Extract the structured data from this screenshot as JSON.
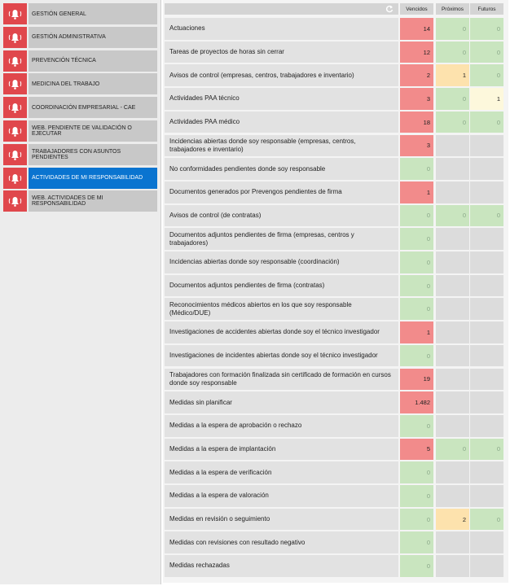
{
  "sidebar": {
    "items": [
      "GESTIÓN GENERAL",
      "GESTIÓN ADMINISTRATIVA",
      "PREVENCIÓN TÉCNICA",
      "MEDICINA DEL TRABAJO",
      "COORDINACIÓN EMPRESARIAL - CAE",
      "WEB. PENDIENTE DE VALIDACIÓN O EJECUTAR",
      "TRABAJADORES CON ASUNTOS PENDIENTES",
      "ACTIVIDADES DE MI RESPONSABILIDAD",
      "WEB. ACTIVIDADES DE MI RESPONSABILIDAD"
    ],
    "active": 7
  },
  "table": {
    "columns": [
      {
        "label": "Vencidos",
        "color": "#f28b8b"
      },
      {
        "label": "Próximos",
        "color": "#fde2ad"
      },
      {
        "label": "Futuros",
        "color": "#fdf8dc"
      }
    ],
    "zero_color": "#c9e5bf",
    "empty_color": "#dcdcdc",
    "rows": [
      [
        "Actuaciones",
        "14",
        "0",
        "0"
      ],
      [
        "Tareas de proyectos de horas sin cerrar",
        "12",
        "0",
        "0"
      ],
      [
        "Avisos de control (empresas, centros, trabajadores e inventario)",
        "2",
        "1",
        "0"
      ],
      [
        "Actividades PAA técnico",
        "3",
        "0",
        "1"
      ],
      [
        "Actividades PAA médico",
        "18",
        "0",
        "0"
      ],
      [
        "Incidencias abiertas donde soy responsable (empresas, centros, trabajadores e inventario)",
        "3",
        null,
        null
      ],
      [
        "No conformidades pendientes donde soy responsable",
        "0",
        null,
        null
      ],
      [
        "Documentos generados por Prevengos pendientes de firma",
        "1",
        null,
        null
      ],
      [
        "Avisos de control (de contratas)",
        "0",
        "0",
        "0"
      ],
      [
        "Documentos adjuntos pendientes de firma (empresas, centros y trabajadores)",
        "0",
        null,
        null
      ],
      [
        "Incidencias abiertas donde soy responsable (coordinación)",
        "0",
        null,
        null
      ],
      [
        "Documentos adjuntos pendientes de firma (contratas)",
        "0",
        null,
        null
      ],
      [
        "Reconocimientos médicos abiertos en los que soy responsable (Médico/DUE)",
        "0",
        null,
        null
      ],
      [
        "Investigaciones de accidentes abiertas donde soy el técnico investigador",
        "1",
        null,
        null
      ],
      [
        "Investigaciones de incidentes abiertas donde soy el técnico investigador",
        "0",
        null,
        null
      ],
      [
        "Trabajadores con formación finalizada sin certificado de formación en cursos donde soy responsable",
        "19",
        null,
        null
      ],
      [
        "Medidas sin planificar",
        "1.482",
        null,
        null
      ],
      [
        "Medidas a la espera de aprobación o rechazo",
        "0",
        null,
        null
      ],
      [
        "Medidas a la espera de implantación",
        "5",
        "0",
        "0"
      ],
      [
        "Medidas a la espera de verificación",
        "0",
        null,
        null
      ],
      [
        "Medidas a la espera de valoración",
        "0",
        null,
        null
      ],
      [
        "Medidas en revisión o seguimiento",
        "0",
        "2",
        "0"
      ],
      [
        "Medidas con revisiones con resultado negativo",
        "0",
        null,
        null
      ],
      [
        "Medidas rechazadas",
        "0",
        null,
        null
      ]
    ]
  }
}
